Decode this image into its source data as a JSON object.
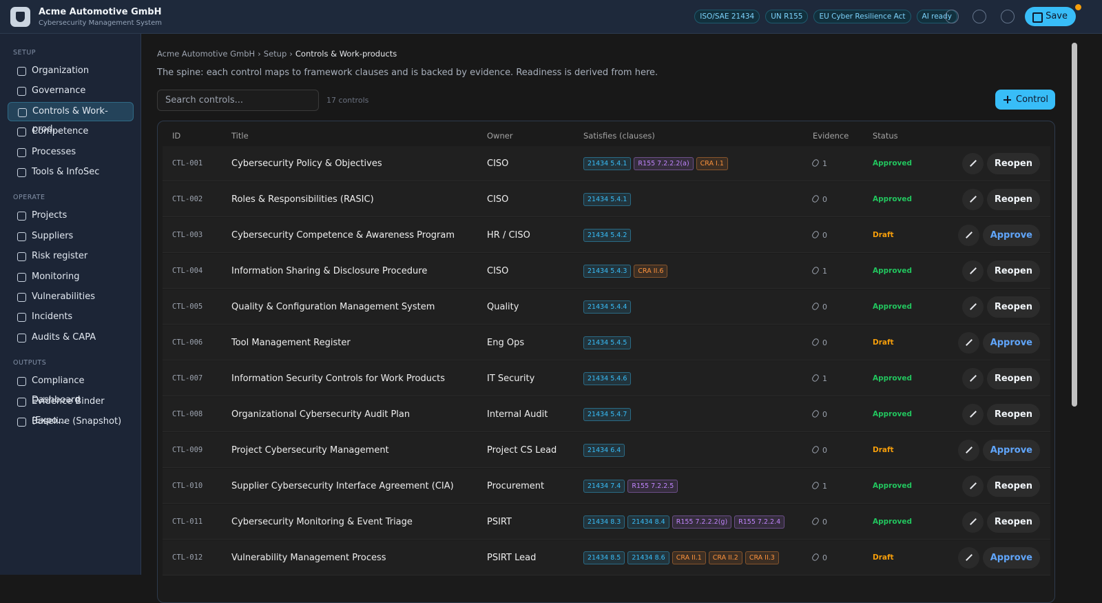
{
  "header": {
    "title": "Acme Automotive GmbH",
    "subtitle": "Cybersecurity Management System",
    "badges": [
      "ISO/SAE 21434",
      "UN R155",
      "EU Cyber Resilience Act",
      "AI ready"
    ],
    "save": "Save"
  },
  "sidebar": {
    "sections": [
      {
        "label": "SETUP",
        "items": [
          "Organization",
          "Governance",
          "Controls & Work-prod…",
          "Competence",
          "Processes",
          "Tools & InfoSec"
        ],
        "active": 2
      },
      {
        "label": "OPERATE",
        "items": [
          "Projects",
          "Suppliers",
          "Risk register",
          "Monitoring",
          "Vulnerabilities",
          "Incidents",
          "Audits & CAPA"
        ]
      },
      {
        "label": "OUTPUTS",
        "items": [
          "Compliance Dashboard",
          "Evidence Binder (Expo…",
          "Baseline (Snapshot)"
        ]
      }
    ]
  },
  "breadcrumb": {
    "items": [
      "Acme Automotive GmbH",
      "Setup",
      "Controls & Work-products"
    ],
    "separator": "›"
  },
  "description": "The spine: each control maps to framework clauses and is backed by evidence. Readiness is derived from here.",
  "search_placeholder": "Search controls...",
  "count": "17 controls",
  "add_button": "Control",
  "clause_colors": {
    "21434": "#38bdf8",
    "R155": "#c084fc",
    "CRA": "#fb923c"
  },
  "status_colors": {
    "Approved": "#22c55e",
    "Draft": "#f59e0b"
  },
  "action_colors": {
    "Reopen": "#f1f5f9",
    "Approve": "#60a5fa"
  },
  "table": {
    "columns": [
      "ID",
      "Title",
      "Owner",
      "Satisfies (clauses)",
      "Evidence",
      "Status"
    ],
    "rows": [
      {
        "id": "CTL-001",
        "title": "Cybersecurity Policy & Objectives",
        "owner": "CISO",
        "clauses": [
          "21434 5.4.1",
          "R155 7.2.2.2(a)",
          "CRA I.1"
        ],
        "evidence": 1,
        "status": "Approved",
        "action": "Reopen"
      },
      {
        "id": "CTL-002",
        "title": "Roles & Responsibilities (RASIC)",
        "owner": "CISO",
        "clauses": [
          "21434 5.4.1"
        ],
        "evidence": 0,
        "status": "Approved",
        "action": "Reopen"
      },
      {
        "id": "CTL-003",
        "title": "Cybersecurity Competence & Awareness Program",
        "owner": "HR / CISO",
        "clauses": [
          "21434 5.4.2"
        ],
        "evidence": 0,
        "status": "Draft",
        "action": "Approve"
      },
      {
        "id": "CTL-004",
        "title": "Information Sharing & Disclosure Procedure",
        "owner": "CISO",
        "clauses": [
          "21434 5.4.3",
          "CRA II.6"
        ],
        "evidence": 1,
        "status": "Approved",
        "action": "Reopen"
      },
      {
        "id": "CTL-005",
        "title": "Quality & Configuration Management System",
        "owner": "Quality",
        "clauses": [
          "21434 5.4.4"
        ],
        "evidence": 0,
        "status": "Approved",
        "action": "Reopen"
      },
      {
        "id": "CTL-006",
        "title": "Tool Management Register",
        "owner": "Eng Ops",
        "clauses": [
          "21434 5.4.5"
        ],
        "evidence": 0,
        "status": "Draft",
        "action": "Approve"
      },
      {
        "id": "CTL-007",
        "title": "Information Security Controls for Work Products",
        "owner": "IT Security",
        "clauses": [
          "21434 5.4.6"
        ],
        "evidence": 1,
        "status": "Approved",
        "action": "Reopen"
      },
      {
        "id": "CTL-008",
        "title": "Organizational Cybersecurity Audit Plan",
        "owner": "Internal Audit",
        "clauses": [
          "21434 5.4.7"
        ],
        "evidence": 0,
        "status": "Approved",
        "action": "Reopen"
      },
      {
        "id": "CTL-009",
        "title": "Project Cybersecurity Management",
        "owner": "Project CS Lead",
        "clauses": [
          "21434 6.4"
        ],
        "evidence": 0,
        "status": "Draft",
        "action": "Approve"
      },
      {
        "id": "CTL-010",
        "title": "Supplier Cybersecurity Interface Agreement (CIA)",
        "owner": "Procurement",
        "clauses": [
          "21434 7.4",
          "R155 7.2.2.5"
        ],
        "evidence": 1,
        "status": "Approved",
        "action": "Reopen"
      },
      {
        "id": "CTL-011",
        "title": "Cybersecurity Monitoring & Event Triage",
        "owner": "PSIRT",
        "clauses": [
          "21434 8.3",
          "21434 8.4",
          "R155 7.2.2.2(g)",
          "R155 7.2.2.4"
        ],
        "evidence": 0,
        "status": "Approved",
        "action": "Reopen"
      },
      {
        "id": "CTL-012",
        "title": "Vulnerability Management Process",
        "owner": "PSIRT Lead",
        "clauses": [
          "21434 8.5",
          "21434 8.6",
          "CRA II.1",
          "CRA II.2",
          "CRA II.3"
        ],
        "evidence": 0,
        "status": "Draft",
        "action": "Approve"
      }
    ]
  }
}
